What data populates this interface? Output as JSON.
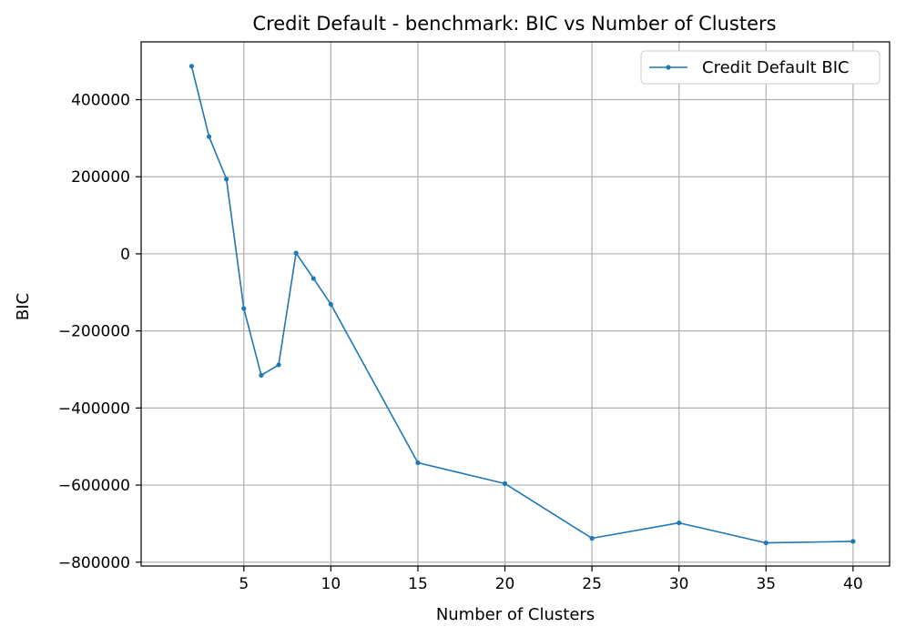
{
  "chart_data": {
    "type": "line",
    "title": "Credit Default - benchmark: BIC vs Number of Clusters",
    "xlabel": "Number of Clusters",
    "ylabel": "BIC",
    "xlim": [
      -0.9,
      42.1
    ],
    "ylim": [
      -810000,
      550000
    ],
    "xticks": [
      5,
      10,
      15,
      20,
      25,
      30,
      35,
      40
    ],
    "yticks": [
      -800000,
      -600000,
      -400000,
      -200000,
      0,
      200000,
      400000
    ],
    "ytick_labels": [
      "−800000",
      "−600000",
      "−400000",
      "−200000",
      "0",
      "200000",
      "400000"
    ],
    "grid": true,
    "legend_position": "top-right",
    "series": [
      {
        "name": "Credit Default BIC",
        "color": "#1f77b4",
        "marker": "circle",
        "x": [
          2,
          3,
          4,
          5,
          6,
          7,
          8,
          9,
          10,
          15,
          20,
          25,
          30,
          35,
          40
        ],
        "y": [
          487000,
          304000,
          194000,
          -142000,
          -315000,
          -288000,
          2000,
          -64000,
          -131000,
          -542000,
          -596000,
          -738000,
          -698000,
          -750000,
          -746000
        ]
      }
    ]
  }
}
